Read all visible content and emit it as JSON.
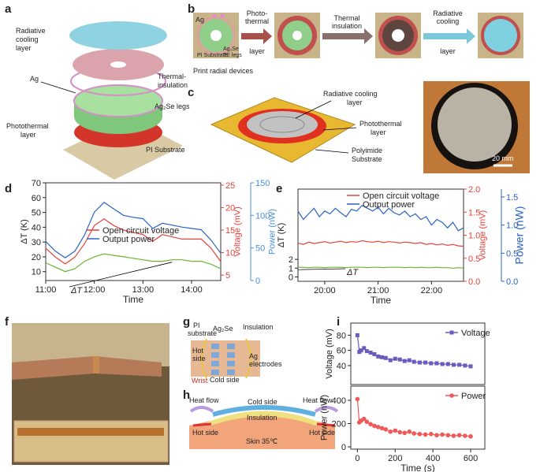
{
  "panels": {
    "a": {
      "label": "a",
      "radiative": [
        "Radiative",
        "cooling",
        "layer"
      ],
      "thermal": [
        "Thermal-",
        "insulation"
      ],
      "ag": "Ag",
      "legs": "Ag₂Se legs",
      "photothermal": [
        "Photothermal",
        "layer"
      ],
      "pi": "PI Substrate"
    },
    "b": {
      "label": "b",
      "ag": "Ag",
      "pi": "PI Substrate",
      "legs": [
        "Ag₂Se",
        "TE legs"
      ],
      "step1": [
        "Photo-",
        "thermal",
        "layer"
      ],
      "step2": [
        "Thermal",
        "insulation"
      ],
      "step3": [
        "Radiative",
        "cooling",
        "layer"
      ],
      "caption": "Print radial devices"
    },
    "c": {
      "label": "c",
      "radiative": [
        "Radiative cooling",
        "layer"
      ],
      "photothermal": [
        "Photothermal",
        "layer"
      ],
      "polyimide": [
        "Polyimide",
        "Substrate"
      ],
      "scale": "20 mm"
    },
    "d": {
      "label": "d"
    },
    "e": {
      "label": "e"
    },
    "f": {
      "label": "f"
    },
    "g": {
      "label": "g",
      "pi": [
        "PI",
        "substrate"
      ],
      "ag2se": "Ag₂Se",
      "insulation": "Insulation",
      "hot": [
        "Hot",
        "side"
      ],
      "ag": [
        "Ag",
        "electrodes"
      ],
      "cold": "Cold side",
      "wrist": "Wrist"
    },
    "h": {
      "label": "h",
      "heat1": "Heat flow",
      "cold": "Cold side",
      "heat2": "Heat flow",
      "insulation": "Insulation",
      "hot1": "Hot side",
      "hot2": "Hot side",
      "skin": "Skin 35℃"
    },
    "i": {
      "label": "i"
    }
  },
  "chart_data": [
    {
      "type": "line",
      "x_label": "Time",
      "y_label": "ΔT (K)",
      "y2_label": "Voltage (mV)",
      "y3_label": "Power (nW)",
      "annotation": "ΔT",
      "x": [
        11.0,
        11.2,
        11.4,
        11.6,
        11.8,
        12.0,
        12.2,
        12.4,
        12.6,
        12.8,
        13.0,
        13.2,
        13.4,
        13.6,
        13.8,
        14.0,
        14.2,
        14.4,
        14.6
      ],
      "xlim": [
        11,
        14.6
      ],
      "xticks": [
        {
          "value": 11,
          "label": "11:00"
        },
        {
          "value": 12,
          "label": "12:00"
        },
        {
          "value": 13,
          "label": "13:00"
        },
        {
          "value": 14,
          "label": "14:00"
        }
      ],
      "ylim": [
        4,
        70
      ],
      "yticks": [
        10,
        20,
        30,
        40,
        50,
        60,
        70
      ],
      "y2lim": [
        3.8,
        25.5
      ],
      "y2ticks": [
        5,
        10,
        15,
        20,
        25
      ],
      "y2_color": "#e8413c",
      "y3lim": [
        0,
        150
      ],
      "y3ticks": [
        0,
        50,
        100,
        150
      ],
      "y3_color": "#4a8fd8",
      "series": [
        {
          "name": "Open circuit voltage",
          "color": "#e8413c",
          "axis": "y2",
          "values": [
            11,
            9,
            7.5,
            9,
            12,
            16,
            17.5,
            16,
            15,
            14.5,
            14,
            12.5,
            14,
            13.5,
            13,
            13,
            13,
            11,
            8
          ]
        },
        {
          "name": "Output power",
          "color": "#2a63c4",
          "axis": "y3",
          "values": [
            60,
            45,
            35,
            45,
            70,
            105,
            120,
            110,
            100,
            97,
            95,
            80,
            88,
            85,
            82,
            80,
            78,
            62,
            42
          ]
        },
        {
          "color": "#6ab42d",
          "values": [
            16,
            13,
            10,
            12,
            17,
            20,
            22,
            21,
            20,
            19,
            18,
            17,
            17,
            18,
            18,
            17,
            17,
            15,
            12
          ]
        }
      ]
    },
    {
      "type": "line",
      "x_label": "Time",
      "y_label": "ΔT (K)",
      "y2_label": "Voltage (mV)",
      "y3_label": "Power (nW)",
      "annotation": "ΔT",
      "x": [
        19.5,
        19.6,
        19.7,
        19.8,
        19.9,
        20.0,
        20.1,
        20.2,
        20.3,
        20.4,
        20.5,
        20.6,
        20.7,
        20.8,
        20.9,
        21.0,
        21.1,
        21.2,
        21.3,
        21.4,
        21.5,
        21.6,
        21.7,
        21.8,
        21.9,
        22.0,
        22.1,
        22.2,
        22.3,
        22.4,
        22.5,
        22.6
      ],
      "xlim": [
        19.5,
        22.6
      ],
      "xticks": [
        {
          "value": 20,
          "label": "20:00"
        },
        {
          "value": 21,
          "label": "21:00"
        },
        {
          "value": 22,
          "label": "22:00"
        }
      ],
      "ylim": [
        -0.5,
        10
      ],
      "yticks": [
        0,
        1,
        2
      ],
      "y2lim": [
        0,
        2
      ],
      "y2ticks": [
        {
          "value": 0,
          "label": "0.0"
        },
        {
          "value": 0.5,
          "label": "0.5"
        },
        {
          "value": 1,
          "label": "1.0"
        },
        {
          "value": 1.5,
          "label": "1.5"
        },
        {
          "value": 2,
          "label": "2.0"
        }
      ],
      "y2_color": "#e8413c",
      "y3lim": [
        0,
        1.64
      ],
      "y3ticks": [
        {
          "value": 0,
          "label": "0.0"
        },
        {
          "value": 0.5,
          "label": "0.5"
        },
        {
          "value": 1,
          "label": "1.0"
        },
        {
          "value": 1.5,
          "label": "1.5"
        }
      ],
      "y3_color": "#2a63c4",
      "series": [
        {
          "name": "Open circuit voltage",
          "color": "#e8413c",
          "axis": "y2",
          "values": [
            0.83,
            0.8,
            0.85,
            0.82,
            0.84,
            0.86,
            0.83,
            0.85,
            0.87,
            0.84,
            0.86,
            0.85,
            0.88,
            0.86,
            0.85,
            0.87,
            0.84,
            0.86,
            0.85,
            0.83,
            0.85,
            0.84,
            0.82,
            0.84,
            0.8,
            0.82,
            0.79,
            0.81,
            0.78,
            0.8,
            0.77,
            0.76
          ]
        },
        {
          "name": "Output power",
          "color": "#2a63c4",
          "axis": "y3",
          "values": [
            1.25,
            1.1,
            1.2,
            1.3,
            1.15,
            1.25,
            1.2,
            1.3,
            1.22,
            1.15,
            1.28,
            1.25,
            1.35,
            1.3,
            1.25,
            1.32,
            1.2,
            1.3,
            1.22,
            1.18,
            1.25,
            1.15,
            1.2,
            1.1,
            1.15,
            1.0,
            1.1,
            1.05,
            0.95,
            1.05,
            0.9,
            0.95
          ]
        },
        {
          "color": "#6ab42d",
          "values": [
            1.1,
            1.1,
            1.05,
            1.1,
            1.1,
            1.05,
            1.1,
            1.1,
            1.1,
            1.05,
            1.1,
            1.1,
            1.1,
            1.05,
            1.1,
            1.1,
            1.05,
            1.1,
            1.1,
            1.1,
            1.05,
            1.1,
            1.05,
            1.1,
            1.05,
            1.05,
            1.1,
            1.05,
            1.05,
            1.0,
            1.05,
            1.0
          ]
        }
      ]
    },
    {
      "type": "line",
      "markers": "square",
      "y_label": "Voltage (mV)",
      "x": [
        0,
        10,
        20,
        35,
        50,
        70,
        90,
        110,
        130,
        150,
        175,
        200,
        225,
        250,
        275,
        300,
        330,
        360,
        390,
        420,
        450,
        480,
        510,
        540,
        570,
        600
      ],
      "xlim": [
        -35,
        675
      ],
      "ylim": [
        15,
        96
      ],
      "yticks": [
        40,
        60,
        80
      ],
      "series": [
        {
          "name": "Voltage",
          "color": "#6b5bbf",
          "values": [
            80,
            58,
            60,
            63,
            59,
            57,
            55,
            52,
            51,
            50,
            47,
            49,
            48,
            46,
            47,
            45,
            44,
            44,
            43,
            43,
            42,
            42,
            41,
            41,
            40,
            39
          ]
        }
      ]
    },
    {
      "type": "line",
      "markers": "circle",
      "y_label": "Power (nW)",
      "x_label": "Time (s)",
      "x": [
        0,
        10,
        20,
        35,
        50,
        70,
        90,
        110,
        130,
        150,
        175,
        200,
        225,
        250,
        275,
        300,
        330,
        360,
        390,
        420,
        450,
        480,
        510,
        540,
        570,
        600
      ],
      "xlim": [
        -35,
        675
      ],
      "xticks": [
        0,
        200,
        400,
        600
      ],
      "ylim": [
        -20,
        522
      ],
      "yticks": [
        0,
        200,
        400
      ],
      "series": [
        {
          "name": "Power",
          "color": "#f0585a",
          "values": [
            410,
            210,
            225,
            240,
            215,
            195,
            180,
            170,
            160,
            150,
            130,
            140,
            125,
            120,
            130,
            115,
            110,
            105,
            110,
            100,
            105,
            100,
            95,
            100,
            95,
            90
          ]
        }
      ]
    }
  ]
}
